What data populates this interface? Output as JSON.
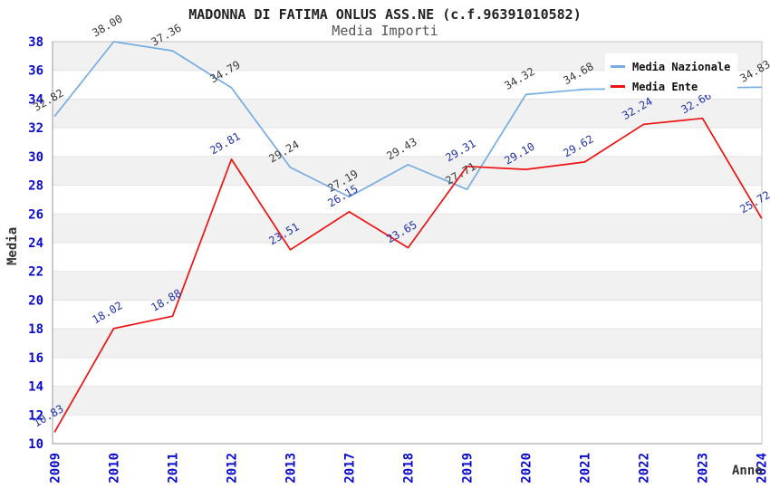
{
  "chart_data": {
    "type": "line",
    "title": "MADONNA DI FATIMA ONLUS ASS.NE (c.f.96391010582)",
    "subtitle": "Media Importi",
    "xlabel": "Anno",
    "ylabel": "Media",
    "x": [
      "2009",
      "2010",
      "2011",
      "2012",
      "2013",
      "2017",
      "2018",
      "2019",
      "2020",
      "2021",
      "2022",
      "2023",
      "2024"
    ],
    "series": [
      {
        "name": "Media Nazionale",
        "color": "#76ace2",
        "label_color": "#3a3a3a",
        "values": [
          32.82,
          38.0,
          37.36,
          34.79,
          29.24,
          27.19,
          29.43,
          27.71,
          34.32,
          34.68,
          null,
          null,
          34.83
        ]
      },
      {
        "name": "Media Ente",
        "color": "#ee1111",
        "label_color": "#2233aa",
        "values": [
          10.83,
          18.02,
          18.88,
          29.81,
          23.51,
          26.15,
          23.65,
          29.31,
          29.1,
          29.62,
          32.24,
          32.66,
          25.72
        ]
      }
    ],
    "ylim": [
      10,
      38
    ],
    "ytick_step": 2,
    "grid": "horizontal-alternating-bands",
    "legend_position": "top-right"
  },
  "style_colors": {
    "band_gray": "#f1f1f1",
    "band_white": "#ffffff",
    "gridline": "#e3e3e3",
    "plot_border": "#c4c4c4",
    "axis_line": "#999999",
    "tick_label_blue": "#0a0acd",
    "title": "#222222",
    "subtitle": "#555555",
    "axis_title": "#333333",
    "legend_bg": "#ffffff"
  }
}
